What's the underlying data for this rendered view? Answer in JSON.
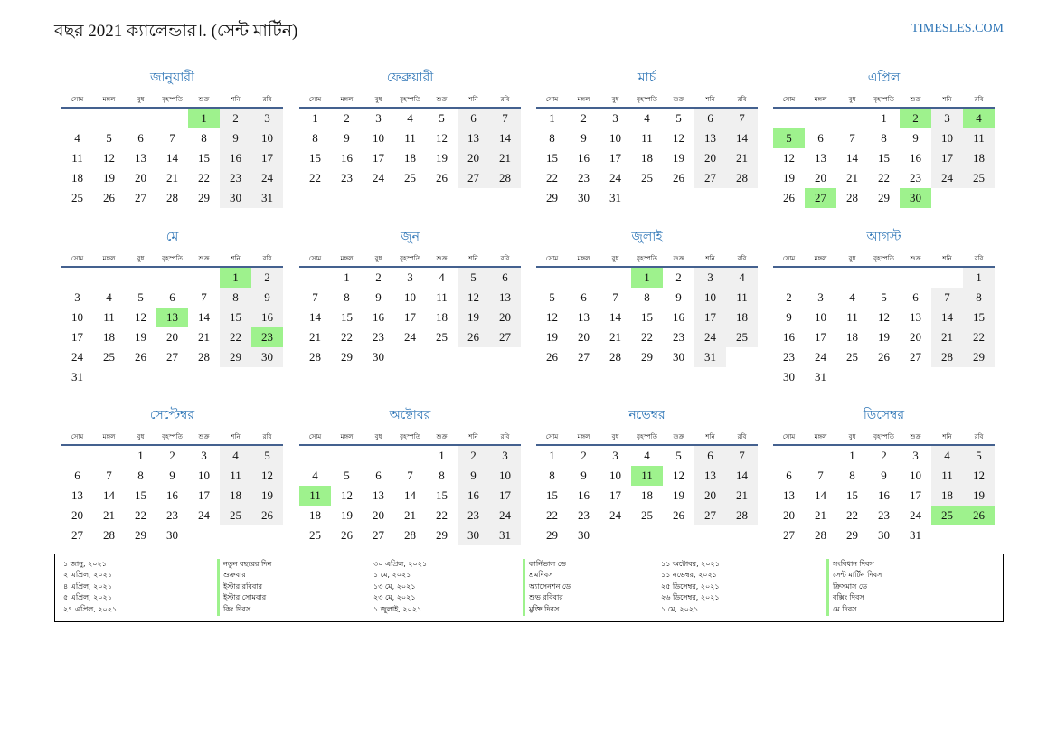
{
  "header": {
    "title": "বছর 2021 ক্যালেন্ডার।. (সেন্ট মার্টিন)",
    "site": "TIMESLES.COM"
  },
  "weekdays": [
    "সোম",
    "মঙ্গল",
    "বুধ",
    "বৃহস্পতি",
    "শুক্র",
    "শনি",
    "রবি"
  ],
  "months": [
    {
      "name": "জানুয়ারী",
      "highlight": [
        1
      ],
      "weeks": [
        [
          null,
          null,
          null,
          null,
          1,
          2,
          3
        ],
        [
          4,
          5,
          6,
          7,
          8,
          9,
          10
        ],
        [
          11,
          12,
          13,
          14,
          15,
          16,
          17
        ],
        [
          18,
          19,
          20,
          21,
          22,
          23,
          24
        ],
        [
          25,
          26,
          27,
          28,
          29,
          30,
          31
        ]
      ]
    },
    {
      "name": "ফেব্রুয়ারী",
      "highlight": [],
      "weeks": [
        [
          1,
          2,
          3,
          4,
          5,
          6,
          7
        ],
        [
          8,
          9,
          10,
          11,
          12,
          13,
          14
        ],
        [
          15,
          16,
          17,
          18,
          19,
          20,
          21
        ],
        [
          22,
          23,
          24,
          25,
          26,
          27,
          28
        ]
      ]
    },
    {
      "name": "মার্চ",
      "highlight": [],
      "weeks": [
        [
          1,
          2,
          3,
          4,
          5,
          6,
          7
        ],
        [
          8,
          9,
          10,
          11,
          12,
          13,
          14
        ],
        [
          15,
          16,
          17,
          18,
          19,
          20,
          21
        ],
        [
          22,
          23,
          24,
          25,
          26,
          27,
          28
        ],
        [
          29,
          30,
          31
        ]
      ]
    },
    {
      "name": "এপ্রিল",
      "highlight": [
        2,
        4,
        5,
        27,
        30
      ],
      "weeks": [
        [
          null,
          null,
          null,
          1,
          2,
          3,
          4
        ],
        [
          5,
          6,
          7,
          8,
          9,
          10,
          11
        ],
        [
          12,
          13,
          14,
          15,
          16,
          17,
          18
        ],
        [
          19,
          20,
          21,
          22,
          23,
          24,
          25
        ],
        [
          26,
          27,
          28,
          29,
          30
        ]
      ]
    },
    {
      "name": "মে",
      "highlight": [
        1,
        13,
        23
      ],
      "weeks": [
        [
          null,
          null,
          null,
          null,
          null,
          1,
          2
        ],
        [
          3,
          4,
          5,
          6,
          7,
          8,
          9
        ],
        [
          10,
          11,
          12,
          13,
          14,
          15,
          16
        ],
        [
          17,
          18,
          19,
          20,
          21,
          22,
          23
        ],
        [
          24,
          25,
          26,
          27,
          28,
          29,
          30
        ],
        [
          31
        ]
      ]
    },
    {
      "name": "জুন",
      "highlight": [],
      "weeks": [
        [
          null,
          1,
          2,
          3,
          4,
          5,
          6
        ],
        [
          7,
          8,
          9,
          10,
          11,
          12,
          13
        ],
        [
          14,
          15,
          16,
          17,
          18,
          19,
          20
        ],
        [
          21,
          22,
          23,
          24,
          25,
          26,
          27
        ],
        [
          28,
          29,
          30
        ]
      ]
    },
    {
      "name": "জুলাই",
      "highlight": [
        1
      ],
      "weeks": [
        [
          null,
          null,
          null,
          1,
          2,
          3,
          4
        ],
        [
          5,
          6,
          7,
          8,
          9,
          10,
          11
        ],
        [
          12,
          13,
          14,
          15,
          16,
          17,
          18
        ],
        [
          19,
          20,
          21,
          22,
          23,
          24,
          25
        ],
        [
          26,
          27,
          28,
          29,
          30,
          31
        ]
      ]
    },
    {
      "name": "আগস্ট",
      "highlight": [],
      "weeks": [
        [
          null,
          null,
          null,
          null,
          null,
          null,
          1
        ],
        [
          2,
          3,
          4,
          5,
          6,
          7,
          8
        ],
        [
          9,
          10,
          11,
          12,
          13,
          14,
          15
        ],
        [
          16,
          17,
          18,
          19,
          20,
          21,
          22
        ],
        [
          23,
          24,
          25,
          26,
          27,
          28,
          29
        ],
        [
          30,
          31
        ]
      ]
    },
    {
      "name": "সেপ্টেম্বর",
      "highlight": [],
      "weeks": [
        [
          null,
          null,
          1,
          2,
          3,
          4,
          5
        ],
        [
          6,
          7,
          8,
          9,
          10,
          11,
          12
        ],
        [
          13,
          14,
          15,
          16,
          17,
          18,
          19
        ],
        [
          20,
          21,
          22,
          23,
          24,
          25,
          26
        ],
        [
          27,
          28,
          29,
          30
        ]
      ]
    },
    {
      "name": "অক্টোবর",
      "highlight": [
        11
      ],
      "weeks": [
        [
          null,
          null,
          null,
          null,
          1,
          2,
          3
        ],
        [
          4,
          5,
          6,
          7,
          8,
          9,
          10
        ],
        [
          11,
          12,
          13,
          14,
          15,
          16,
          17
        ],
        [
          18,
          19,
          20,
          21,
          22,
          23,
          24
        ],
        [
          25,
          26,
          27,
          28,
          29,
          30,
          31
        ]
      ]
    },
    {
      "name": "নভেম্বর",
      "highlight": [
        11
      ],
      "weeks": [
        [
          1,
          2,
          3,
          4,
          5,
          6,
          7
        ],
        [
          8,
          9,
          10,
          11,
          12,
          13,
          14
        ],
        [
          15,
          16,
          17,
          18,
          19,
          20,
          21
        ],
        [
          22,
          23,
          24,
          25,
          26,
          27,
          28
        ],
        [
          29,
          30
        ]
      ]
    },
    {
      "name": "ডিসেম্বর",
      "highlight": [
        25,
        26
      ],
      "weeks": [
        [
          null,
          null,
          1,
          2,
          3,
          4,
          5
        ],
        [
          6,
          7,
          8,
          9,
          10,
          11,
          12
        ],
        [
          13,
          14,
          15,
          16,
          17,
          18,
          19
        ],
        [
          20,
          21,
          22,
          23,
          24,
          25,
          26
        ],
        [
          27,
          28,
          29,
          30,
          31
        ]
      ]
    }
  ],
  "holidays": [
    [
      {
        "date": "১ জানু, ২০২১",
        "name": "নতুন বছরের দিন"
      },
      {
        "date": "২ এপ্রিল, ২০২১",
        "name": "শুক্রবার"
      },
      {
        "date": "৪ এপ্রিল, ২০২১",
        "name": "ইস্টার রবিবার"
      },
      {
        "date": "৫ এপ্রিল, ২০২১",
        "name": "ইস্টার সোমবার"
      },
      {
        "date": "২৭ এপ্রিল, ২০২১",
        "name": "কিং দিবস"
      }
    ],
    [
      {
        "date": "৩০ এপ্রিল, ২০২১",
        "name": "কার্নিভাল ডে"
      },
      {
        "date": "১ মে, ২০২১",
        "name": "শ্রমদিবস"
      },
      {
        "date": "১৩ মে, ২০২১",
        "name": "অ্যাসেনশন ডে"
      },
      {
        "date": "২৩ মে, ২০২১",
        "name": "শুভ রবিবার"
      },
      {
        "date": "১ জুলাই, ২০২১",
        "name": "মুক্তি দিবস"
      }
    ],
    [
      {
        "date": "১১ অক্টোবর, ২০২১",
        "name": "সংবিধান দিবস"
      },
      {
        "date": "১১ নভেম্বর, ২০২১",
        "name": "সেন্ট মার্টিন দিবস"
      },
      {
        "date": "২৫ ডিসেম্বর, ২০২১",
        "name": "ক্রিসমাস ডে"
      },
      {
        "date": "২৬ ডিসেম্বর, ২০২১",
        "name": "বক্সিং দিবস"
      },
      {
        "date": "১ মে, ২০২১",
        "name": "মে দিবস"
      }
    ]
  ]
}
